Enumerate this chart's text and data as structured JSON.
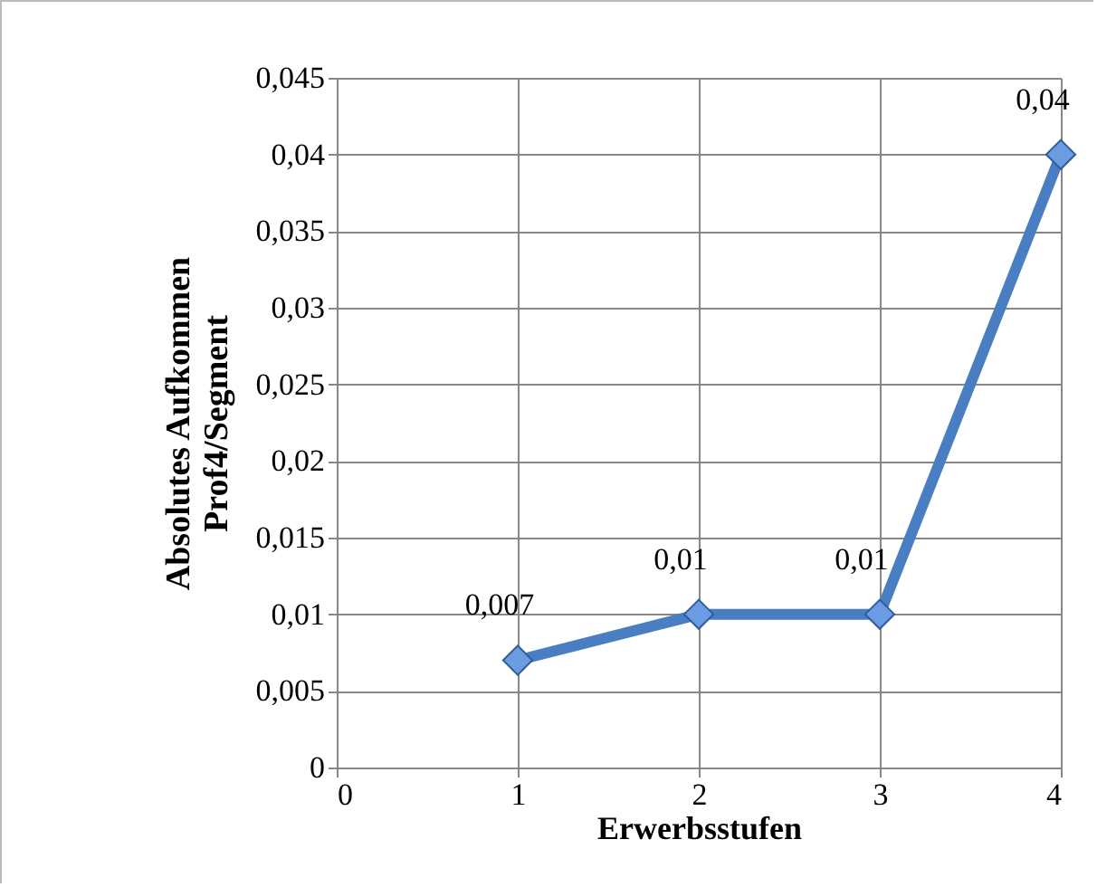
{
  "chart_data": {
    "type": "line",
    "xlabel": "Erwerbsstufen",
    "ylabel": "Absolutes Aufkommen\nProf4/Segment",
    "x": [
      1,
      2,
      3,
      4
    ],
    "series": [
      {
        "color": "#4a7ec2",
        "values": [
          0.007,
          0.01,
          0.01,
          0.04
        ],
        "value_labels": [
          "0,007",
          "0,01",
          "0,01",
          "0,04"
        ]
      }
    ],
    "xlim": [
      0,
      4
    ],
    "xticks": [
      0,
      1,
      2,
      3,
      4
    ],
    "ylim": [
      0,
      0.045
    ],
    "yticks": [
      0,
      {
        "value": 0.005,
        "label": "0,005"
      },
      {
        "value": 0.01,
        "label": "0,01"
      },
      {
        "value": 0.015,
        "label": "0,015"
      },
      {
        "value": 0.02,
        "label": "0,02"
      },
      {
        "value": 0.025,
        "label": "0,025"
      },
      {
        "value": 0.03,
        "label": "0,03"
      },
      {
        "value": 0.035,
        "label": "0,035"
      },
      {
        "value": 0.04,
        "label": "0,04"
      },
      {
        "value": 0.045,
        "label": "0,045"
      }
    ],
    "grid": true,
    "marker": "diamond",
    "line_style": "solid"
  }
}
